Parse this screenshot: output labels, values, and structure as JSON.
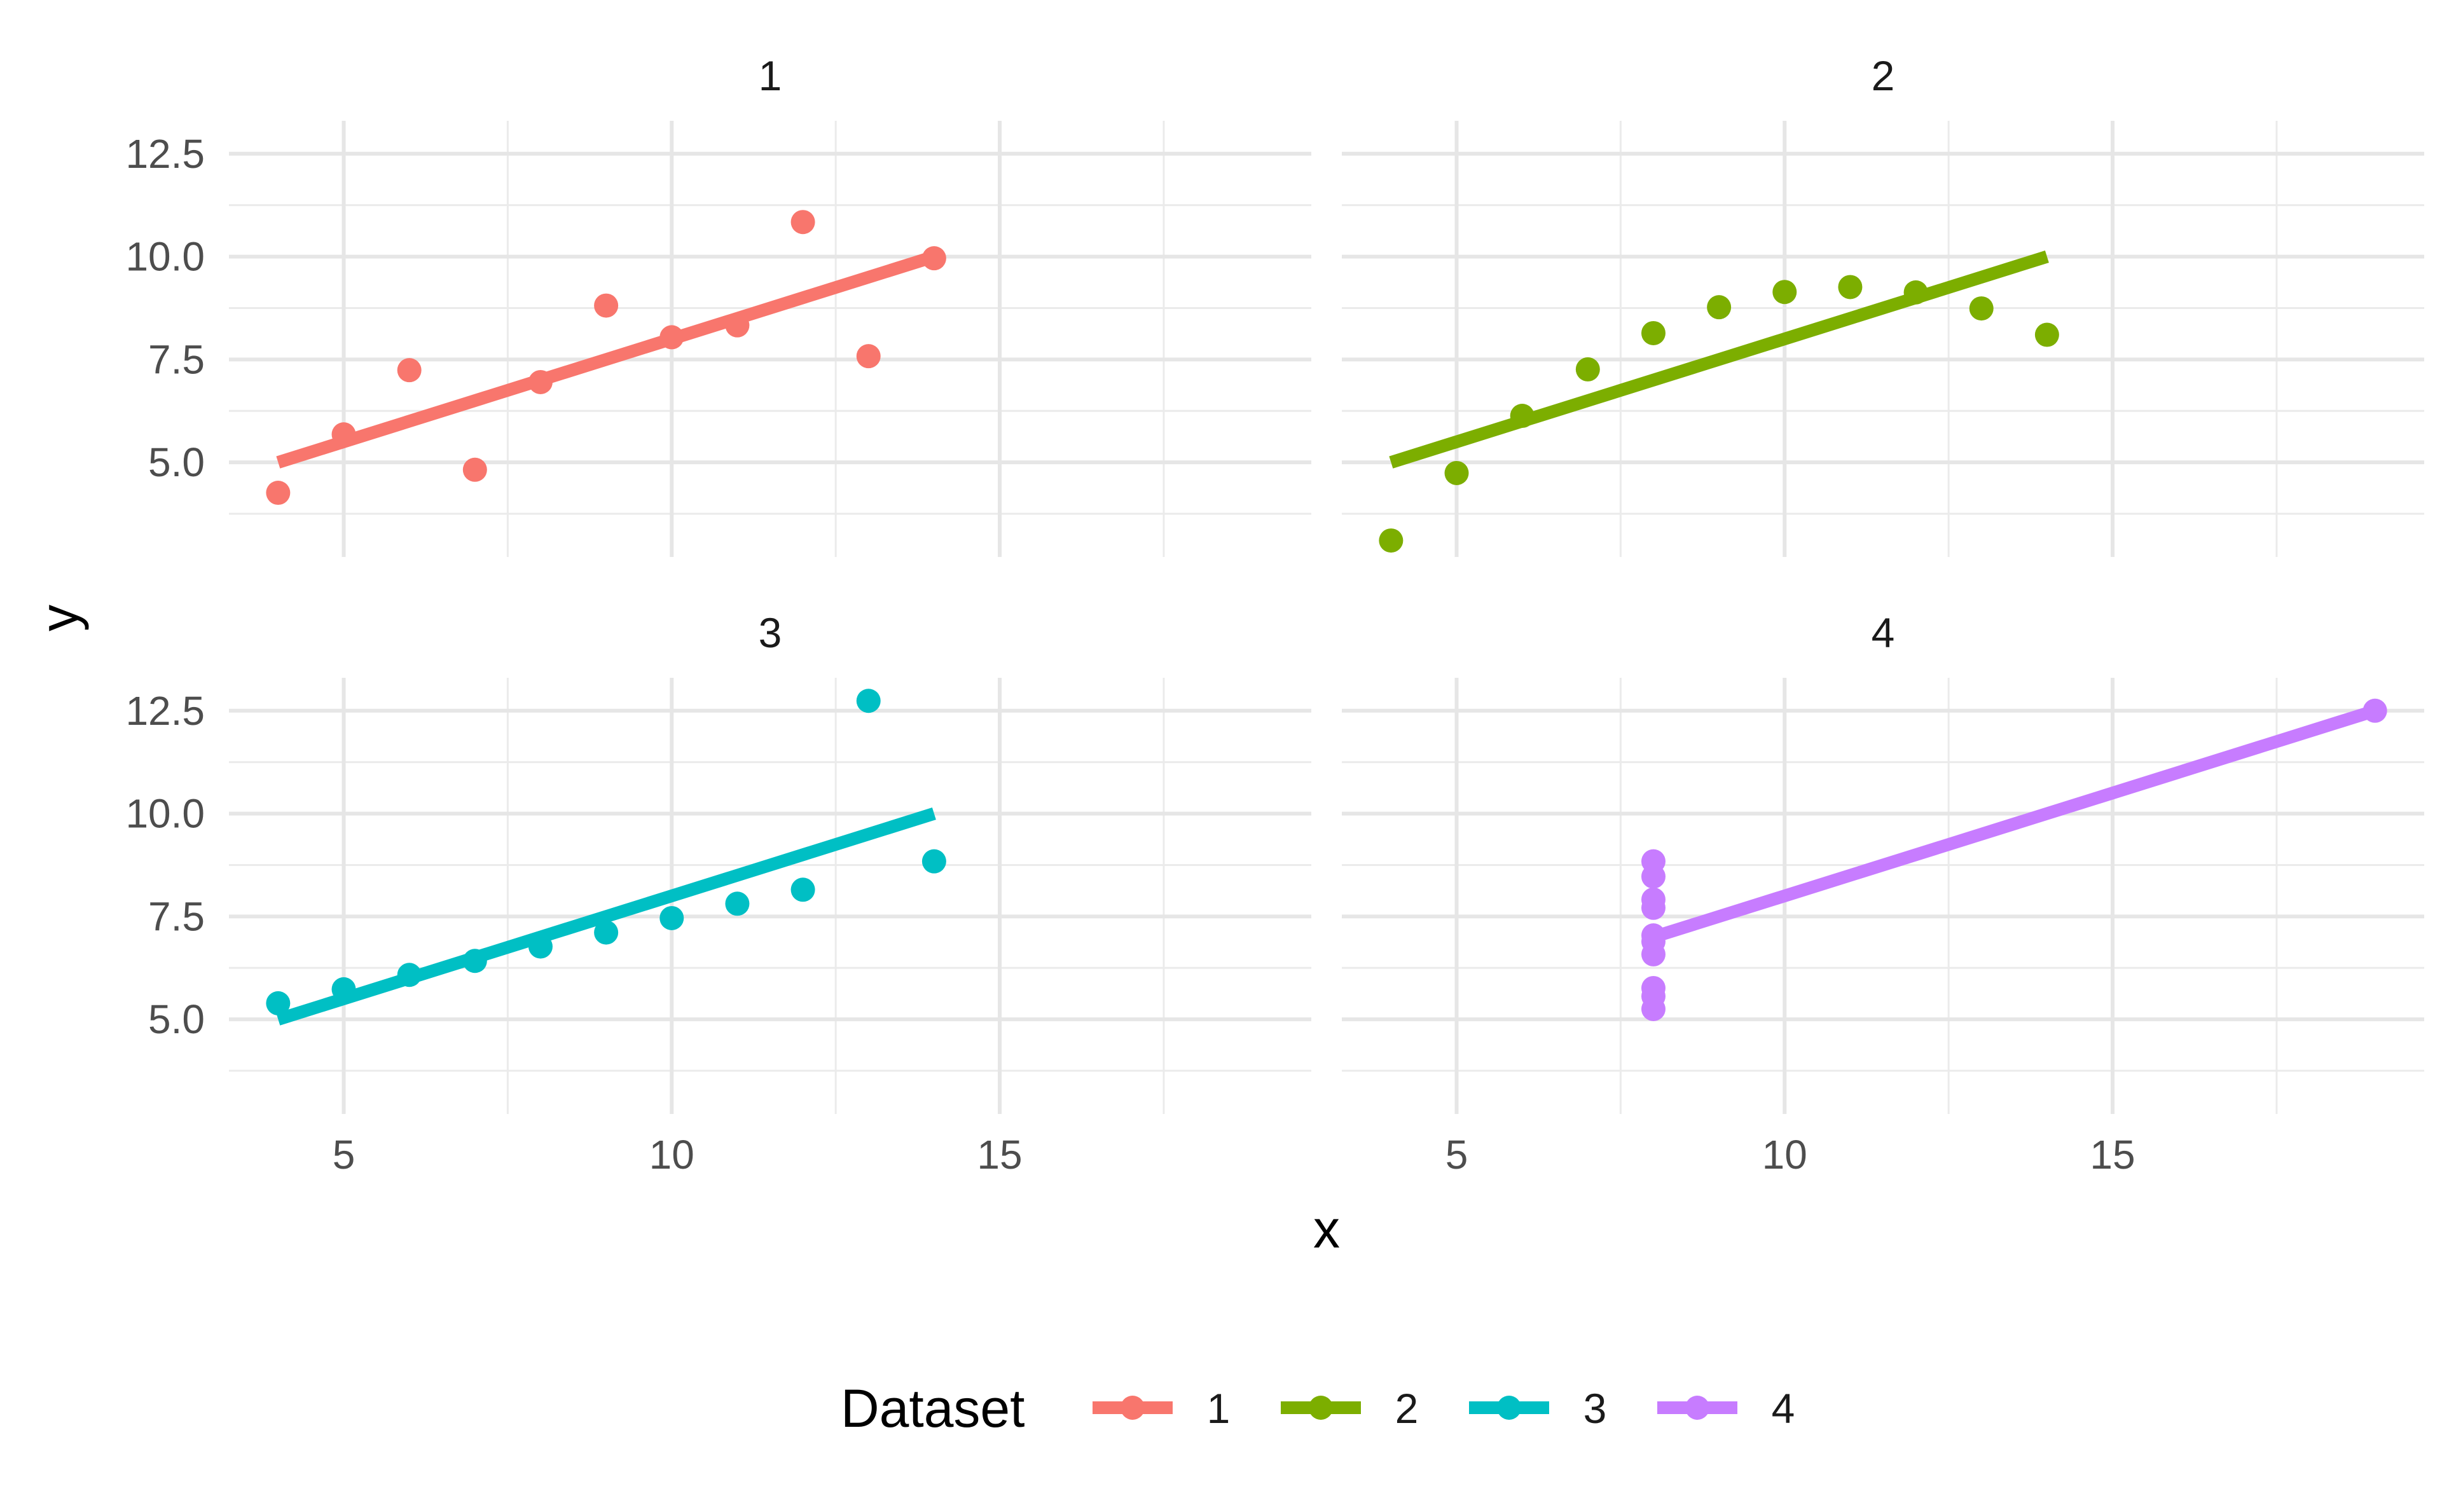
{
  "chart_data": {
    "type": "scatter",
    "xlabel": "x",
    "ylabel": "y",
    "xlim": [
      3.25,
      19.75
    ],
    "ylim": [
      2.7,
      13.3
    ],
    "x_ticks": [
      5,
      10,
      15
    ],
    "y_ticks": [
      5.0,
      7.5,
      10.0,
      12.5
    ],
    "x_tick_labels": [
      "5",
      "10",
      "15"
    ],
    "y_tick_labels": [
      "5.0",
      "7.5",
      "10.0",
      "12.5"
    ],
    "grid": true,
    "legend": {
      "title": "Dataset",
      "position": "bottom",
      "entries": [
        "1",
        "2",
        "3",
        "4"
      ]
    },
    "series": [
      {
        "name": "1",
        "panel_title": "1",
        "color": "#F8766D",
        "x": [
          10,
          8,
          13,
          9,
          11,
          14,
          6,
          4,
          12,
          7,
          5
        ],
        "y": [
          8.04,
          6.95,
          7.58,
          8.81,
          8.33,
          9.96,
          7.24,
          4.26,
          10.84,
          4.82,
          5.68
        ],
        "fit_line": {
          "x": [
            4,
            14
          ],
          "y": [
            5.0,
            10.0
          ]
        }
      },
      {
        "name": "2",
        "panel_title": "2",
        "color": "#7CAE00",
        "x": [
          10,
          8,
          13,
          9,
          11,
          14,
          6,
          4,
          12,
          7,
          5
        ],
        "y": [
          9.14,
          8.14,
          8.74,
          8.77,
          9.26,
          8.1,
          6.13,
          3.1,
          9.13,
          7.26,
          4.74
        ],
        "fit_line": {
          "x": [
            4,
            14
          ],
          "y": [
            5.0,
            10.0
          ]
        }
      },
      {
        "name": "3",
        "panel_title": "3",
        "color": "#00BFC4",
        "x": [
          10,
          8,
          13,
          9,
          11,
          14,
          6,
          4,
          12,
          7,
          5
        ],
        "y": [
          7.46,
          6.77,
          12.74,
          7.11,
          7.81,
          8.84,
          6.08,
          5.39,
          8.15,
          6.42,
          5.73
        ],
        "fit_line": {
          "x": [
            4,
            14
          ],
          "y": [
            5.0,
            10.0
          ]
        }
      },
      {
        "name": "4",
        "panel_title": "4",
        "color": "#C77CFF",
        "x": [
          8,
          8,
          8,
          8,
          8,
          8,
          8,
          19,
          8,
          8,
          8
        ],
        "y": [
          6.58,
          5.76,
          7.71,
          8.84,
          8.47,
          7.04,
          5.25,
          12.5,
          5.56,
          7.91,
          6.89
        ],
        "fit_line": {
          "x": [
            8,
            19
          ],
          "y": [
            7.0,
            12.5
          ]
        }
      }
    ]
  }
}
